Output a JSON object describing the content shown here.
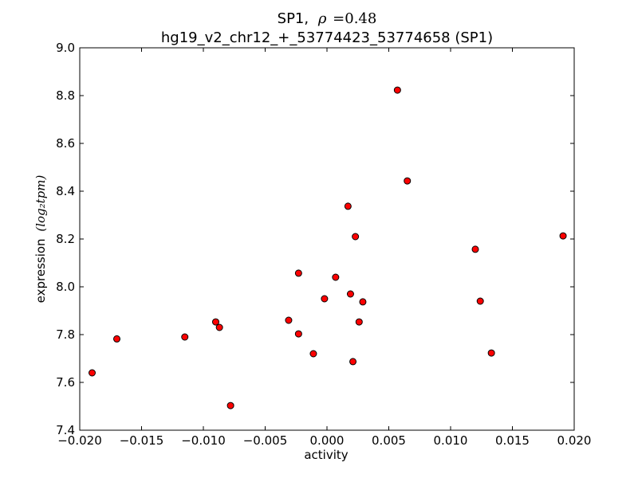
{
  "chart_data": {
    "type": "scatter",
    "title": {
      "gene": "SP1,",
      "rho_symbol": "ρ",
      "rho_value": "=0.48",
      "subtitle": "hg19_v2_chr12_+_53774423_53774658 (SP1)"
    },
    "xlabel": "activity",
    "ylabel": "expression",
    "ylabel_unit": "(log₂tpm)",
    "xlim": [
      -0.02,
      0.02
    ],
    "ylim": [
      7.4,
      9.0
    ],
    "xticks": [
      -0.02,
      -0.015,
      -0.01,
      -0.005,
      0.0,
      0.005,
      0.01,
      0.015,
      0.02
    ],
    "xtick_labels": [
      "−0.020",
      "−0.015",
      "−0.010",
      "−0.005",
      "0.000",
      "0.005",
      "0.010",
      "0.015",
      "0.020"
    ],
    "yticks": [
      7.4,
      7.6,
      7.8,
      8.0,
      8.2,
      8.4,
      8.6,
      8.8,
      9.0
    ],
    "ytick_labels": [
      "7.4",
      "7.6",
      "7.8",
      "8.0",
      "8.2",
      "8.4",
      "8.6",
      "8.8",
      "9.0"
    ],
    "grid": false,
    "marker_color": "#ff0000",
    "points": [
      {
        "x": -0.019,
        "y": 7.64
      },
      {
        "x": -0.017,
        "y": 7.782
      },
      {
        "x": -0.0115,
        "y": 7.79
      },
      {
        "x": -0.009,
        "y": 7.853
      },
      {
        "x": -0.0087,
        "y": 7.83
      },
      {
        "x": -0.0078,
        "y": 7.503
      },
      {
        "x": -0.0031,
        "y": 7.86
      },
      {
        "x": -0.0023,
        "y": 8.057
      },
      {
        "x": -0.0023,
        "y": 7.803
      },
      {
        "x": -0.0011,
        "y": 7.72
      },
      {
        "x": -0.0002,
        "y": 7.95
      },
      {
        "x": 0.0007,
        "y": 8.04
      },
      {
        "x": 0.0017,
        "y": 8.337
      },
      {
        "x": 0.0019,
        "y": 7.97
      },
      {
        "x": 0.0021,
        "y": 7.687
      },
      {
        "x": 0.0023,
        "y": 8.21
      },
      {
        "x": 0.0026,
        "y": 7.853
      },
      {
        "x": 0.0029,
        "y": 7.937
      },
      {
        "x": 0.0057,
        "y": 8.823
      },
      {
        "x": 0.0065,
        "y": 8.443
      },
      {
        "x": 0.012,
        "y": 8.157
      },
      {
        "x": 0.0124,
        "y": 7.94
      },
      {
        "x": 0.0133,
        "y": 7.723
      },
      {
        "x": 0.0191,
        "y": 8.213
      }
    ]
  }
}
